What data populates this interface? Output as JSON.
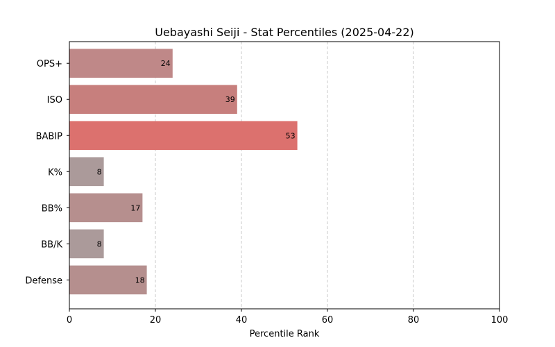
{
  "chart_data": {
    "type": "bar",
    "orientation": "horizontal",
    "title": "Uebayashi Seiji - Stat Percentiles (2025-04-22)",
    "xlabel": "Percentile Rank",
    "ylabel": "",
    "xlim": [
      0,
      100
    ],
    "xticks": [
      "0",
      "20",
      "40",
      "60",
      "80",
      "100"
    ],
    "grid": "x, dashed",
    "categories": [
      "OPS+",
      "ISO",
      "BABIP",
      "K%",
      "BB%",
      "BB/K",
      "Defense"
    ],
    "values": [
      24,
      39,
      53,
      8,
      17,
      8,
      18
    ],
    "value_labels": [
      "24",
      "39",
      "53",
      "8",
      "17",
      "8",
      "18"
    ],
    "bar_colors": [
      "#bf8888",
      "#c77f7d",
      "#dc716e",
      "#ab9a9a",
      "#b68f8e",
      "#ab9a9a",
      "#b58f8e"
    ]
  }
}
